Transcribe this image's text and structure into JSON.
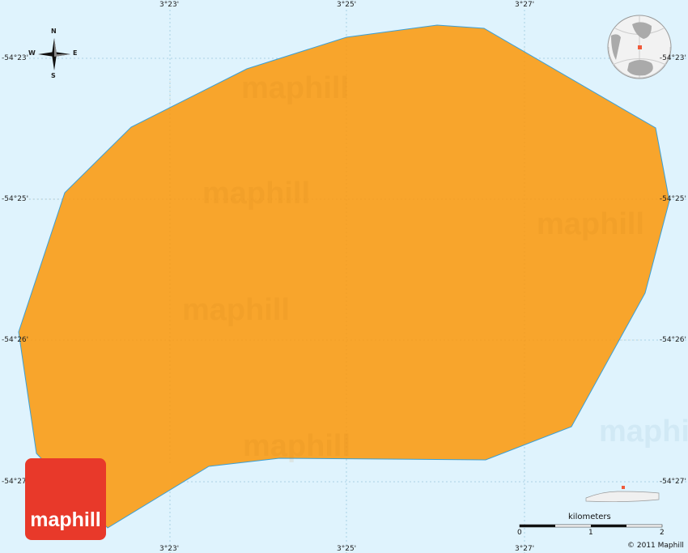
{
  "map": {
    "colors": {
      "sea": "#dff3fd",
      "land": "#f8a52c",
      "coast": "#3a9fd6",
      "grid": "#9ac8dd",
      "logo": "#e8392a"
    },
    "lon_labels": [
      "3°23'",
      "3°25'",
      "3°27'"
    ],
    "lat_labels": [
      "-54°23'",
      "-54°25'",
      "-54°26'",
      "-54°27'"
    ],
    "compass": {
      "n": "N",
      "s": "S",
      "e": "E",
      "w": "W"
    },
    "watermark": "maphill",
    "logo_text": "maphill",
    "scale": {
      "unit": "kilometers",
      "ticks": [
        "0",
        "1",
        "2"
      ]
    },
    "copyright": "© 2011 Maphill",
    "icons": [
      "compass-rose-icon",
      "globe-locator-icon",
      "region-locator-icon"
    ]
  }
}
